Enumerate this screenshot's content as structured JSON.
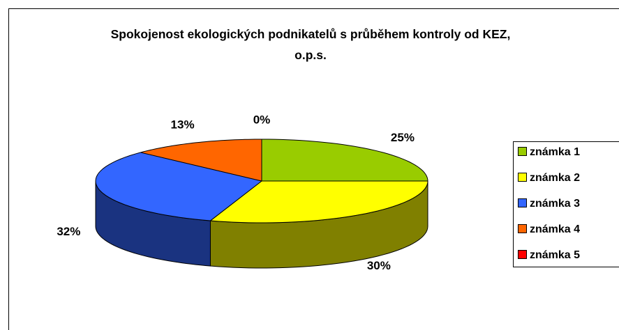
{
  "chart_data": {
    "type": "pie3d",
    "title": "Spokojenost ekologických podnikatelů s průběhem kontroly od KEZ, o.p.s.",
    "categories": [
      "známka 1",
      "známka 2",
      "známka 3",
      "známka 4",
      "známka 5"
    ],
    "values": [
      25,
      30,
      32,
      13,
      0
    ],
    "value_labels": [
      "25%",
      "30%",
      "32%",
      "13%",
      "0%"
    ],
    "colors": [
      "#99cc00",
      "#ffff00",
      "#3366ff",
      "#ff6600",
      "#ff0000"
    ],
    "legend": "right"
  }
}
